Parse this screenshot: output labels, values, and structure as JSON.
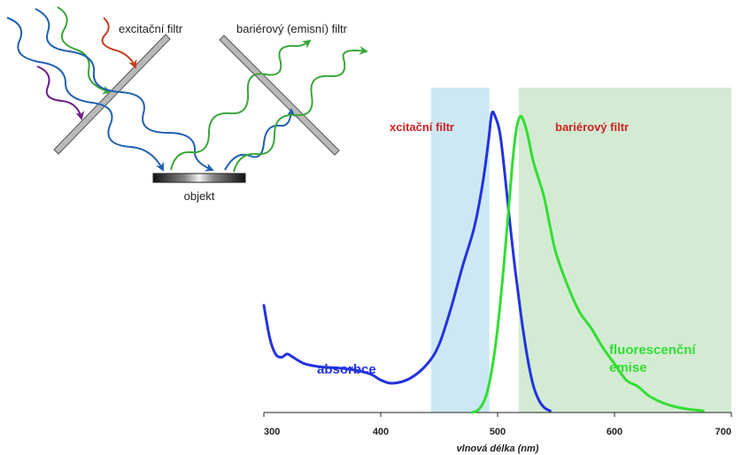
{
  "diagram": {
    "excitation_filter_label": "excitační filtr",
    "barrier_filter_label": "bariérový (emisní) filtr",
    "object_label": "objekt"
  },
  "chart_data": {
    "type": "line",
    "xlabel": "vlnová délka (nm)",
    "xlim": [
      300,
      700
    ],
    "xticks": [
      300,
      400,
      500,
      600,
      700
    ],
    "bands": [
      {
        "label": "xcitační filtr",
        "from": 443,
        "to": 493,
        "color": "#cce8f4",
        "label_color": "#cc2222"
      },
      {
        "label": "bariérový filtr",
        "from": 518,
        "to": 700,
        "color": "#d3ebd3",
        "label_color": "#cc2222"
      }
    ],
    "series": [
      {
        "name": "absorbce",
        "color": "#2233dd",
        "points": [
          [
            300,
            0.33
          ],
          [
            305,
            0.23
          ],
          [
            310,
            0.18
          ],
          [
            315,
            0.17
          ],
          [
            320,
            0.18
          ],
          [
            325,
            0.17
          ],
          [
            335,
            0.15
          ],
          [
            350,
            0.14
          ],
          [
            370,
            0.135
          ],
          [
            390,
            0.12
          ],
          [
            400,
            0.1
          ],
          [
            410,
            0.09
          ],
          [
            425,
            0.105
          ],
          [
            440,
            0.15
          ],
          [
            450,
            0.21
          ],
          [
            460,
            0.32
          ],
          [
            470,
            0.45
          ],
          [
            480,
            0.57
          ],
          [
            487,
            0.7
          ],
          [
            492,
            0.83
          ],
          [
            495,
            0.92
          ],
          [
            498,
            0.91
          ],
          [
            502,
            0.86
          ],
          [
            506,
            0.74
          ],
          [
            510,
            0.6
          ],
          [
            515,
            0.44
          ],
          [
            520,
            0.3
          ],
          [
            525,
            0.18
          ],
          [
            530,
            0.09
          ],
          [
            535,
            0.04
          ],
          [
            540,
            0.015
          ],
          [
            545,
            0.005
          ]
        ]
      },
      {
        "name": "fluorescenční emise",
        "color": "#33dd33",
        "points": [
          [
            478,
            0
          ],
          [
            484,
            0.01
          ],
          [
            490,
            0.05
          ],
          [
            495,
            0.13
          ],
          [
            500,
            0.26
          ],
          [
            505,
            0.44
          ],
          [
            510,
            0.65
          ],
          [
            513,
            0.78
          ],
          [
            516,
            0.87
          ],
          [
            519,
            0.91
          ],
          [
            522,
            0.9
          ],
          [
            526,
            0.85
          ],
          [
            530,
            0.78
          ],
          [
            535,
            0.72
          ],
          [
            540,
            0.66
          ],
          [
            545,
            0.57
          ],
          [
            550,
            0.49
          ],
          [
            560,
            0.39
          ],
          [
            570,
            0.31
          ],
          [
            580,
            0.26
          ],
          [
            590,
            0.2
          ],
          [
            600,
            0.15
          ],
          [
            610,
            0.1
          ],
          [
            620,
            0.08
          ],
          [
            630,
            0.05
          ],
          [
            645,
            0.025
          ],
          [
            660,
            0.012
          ],
          [
            676,
            0.005
          ]
        ]
      }
    ],
    "annotations": [
      {
        "text": "absorbce",
        "color": "#2233dd"
      },
      {
        "text": "fluorescenční",
        "color": "#33dd33"
      },
      {
        "text": "emise",
        "color": "#33dd33"
      }
    ]
  }
}
